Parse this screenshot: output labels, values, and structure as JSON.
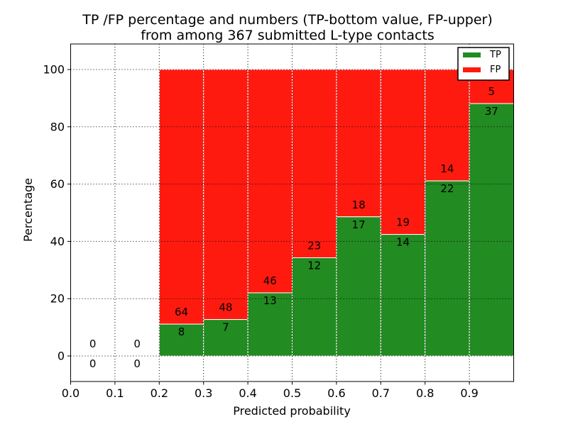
{
  "chart_data": {
    "type": "stacked_bar",
    "title_line1": "TP /FP percentage and numbers (TP-bottom value, FP-upper)",
    "title_line2": "from among 367 submitted L-type contacts",
    "xlabel": "Predicted probability",
    "ylabel": "Percentage",
    "total_submitted": 367,
    "xlim": [
      0.0,
      1.0
    ],
    "ylim": [
      -9,
      109
    ],
    "grid": true,
    "grid_style": "dotted-black-above-bars",
    "bar_width": 0.1,
    "xticks": [
      {
        "value": 0.0,
        "label": "0.0"
      },
      {
        "value": 0.1,
        "label": "0.1"
      },
      {
        "value": 0.2,
        "label": "0.2"
      },
      {
        "value": 0.3,
        "label": "0.3"
      },
      {
        "value": 0.4,
        "label": "0.4"
      },
      {
        "value": 0.5,
        "label": "0.5"
      },
      {
        "value": 0.6,
        "label": "0.6"
      },
      {
        "value": 0.7,
        "label": "0.7"
      },
      {
        "value": 0.8,
        "label": "0.8"
      },
      {
        "value": 0.9,
        "label": "0.9"
      }
    ],
    "yticks": [
      {
        "value": 0,
        "label": "0"
      },
      {
        "value": 20,
        "label": "20"
      },
      {
        "value": 40,
        "label": "40"
      },
      {
        "value": 60,
        "label": "60"
      },
      {
        "value": 80,
        "label": "80"
      },
      {
        "value": 100,
        "label": "100"
      }
    ],
    "bins": [
      {
        "x_start": 0.0,
        "x_end": 0.1,
        "tp": 0,
        "fp": 0,
        "tp_percent": null
      },
      {
        "x_start": 0.1,
        "x_end": 0.2,
        "tp": 0,
        "fp": 0,
        "tp_percent": null
      },
      {
        "x_start": 0.2,
        "x_end": 0.3,
        "tp": 8,
        "fp": 64,
        "tp_percent": 11.1
      },
      {
        "x_start": 0.3,
        "x_end": 0.4,
        "tp": 7,
        "fp": 48,
        "tp_percent": 12.7
      },
      {
        "x_start": 0.4,
        "x_end": 0.5,
        "tp": 13,
        "fp": 46,
        "tp_percent": 22.0
      },
      {
        "x_start": 0.5,
        "x_end": 0.6,
        "tp": 12,
        "fp": 23,
        "tp_percent": 34.3
      },
      {
        "x_start": 0.6,
        "x_end": 0.7,
        "tp": 17,
        "fp": 18,
        "tp_percent": 48.6
      },
      {
        "x_start": 0.7,
        "x_end": 0.8,
        "tp": 14,
        "fp": 19,
        "tp_percent": 42.4
      },
      {
        "x_start": 0.8,
        "x_end": 0.9,
        "tp": 22,
        "fp": 14,
        "tp_percent": 61.1
      },
      {
        "x_start": 0.9,
        "x_end": 1.0,
        "tp": 37,
        "fp": 5,
        "tp_percent": 88.1
      }
    ],
    "legend": {
      "position": "upper right",
      "entries": [
        {
          "label": "TP",
          "color": "#228b22"
        },
        {
          "label": "FP",
          "color": "#ff1a10"
        }
      ]
    },
    "colors": {
      "tp": "#228b22",
      "fp": "#ff1a10",
      "bar_edge": "#ffffff",
      "grid": "#000000",
      "spine": "#000000"
    }
  }
}
